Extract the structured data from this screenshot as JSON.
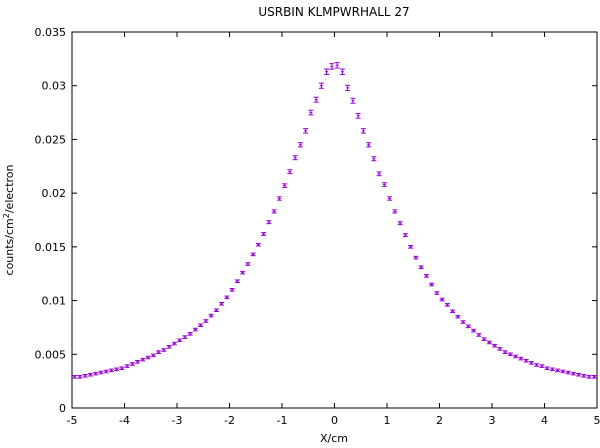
{
  "chart_data": {
    "type": "scatter",
    "title": "USRBIN KLMPWRHALL 27",
    "xlabel": "X/cm",
    "ylabel": {
      "prefix": "counts/cm",
      "superscript": "2",
      "suffix": "/electron"
    },
    "xlim": [
      -5,
      5
    ],
    "ylim": [
      0,
      0.035
    ],
    "x_ticks": [
      "-5",
      "-4",
      "-3",
      "-2",
      "-1",
      "0",
      "1",
      "2",
      "3",
      "4",
      "5"
    ],
    "y_ticks": [
      "0",
      "0.005",
      "0.01",
      "0.015",
      "0.02",
      "0.025",
      "0.03",
      "0.035"
    ],
    "grid": false,
    "series": [
      {
        "marker": "error-bar",
        "color": "#9400d3",
        "points": [
          [
            -4.95,
            0.0029
          ],
          [
            -4.85,
            0.0029
          ],
          [
            -4.75,
            0.003
          ],
          [
            -4.65,
            0.0031
          ],
          [
            -4.55,
            0.0032
          ],
          [
            -4.45,
            0.0033
          ],
          [
            -4.35,
            0.0034
          ],
          [
            -4.25,
            0.0035
          ],
          [
            -4.15,
            0.0036
          ],
          [
            -4.05,
            0.0037
          ],
          [
            -3.95,
            0.0039
          ],
          [
            -3.85,
            0.0041
          ],
          [
            -3.75,
            0.0043
          ],
          [
            -3.65,
            0.0045
          ],
          [
            -3.55,
            0.0047
          ],
          [
            -3.45,
            0.0049
          ],
          [
            -3.35,
            0.0052
          ],
          [
            -3.25,
            0.0054
          ],
          [
            -3.15,
            0.0057
          ],
          [
            -3.05,
            0.006
          ],
          [
            -2.95,
            0.0063
          ],
          [
            -2.85,
            0.0066
          ],
          [
            -2.75,
            0.0069
          ],
          [
            -2.65,
            0.0073
          ],
          [
            -2.55,
            0.0077
          ],
          [
            -2.45,
            0.0081
          ],
          [
            -2.35,
            0.0086
          ],
          [
            -2.25,
            0.0091
          ],
          [
            -2.15,
            0.0097
          ],
          [
            -2.05,
            0.0103
          ],
          [
            -1.95,
            0.011
          ],
          [
            -1.85,
            0.0118
          ],
          [
            -1.75,
            0.0126
          ],
          [
            -1.65,
            0.0134
          ],
          [
            -1.55,
            0.0143
          ],
          [
            -1.45,
            0.0152
          ],
          [
            -1.35,
            0.0162
          ],
          [
            -1.25,
            0.0173
          ],
          [
            -1.15,
            0.0183
          ],
          [
            -1.05,
            0.0195
          ],
          [
            -0.95,
            0.0207
          ],
          [
            -0.85,
            0.022
          ],
          [
            -0.75,
            0.0233
          ],
          [
            -0.65,
            0.0245
          ],
          [
            -0.55,
            0.0258
          ],
          [
            -0.45,
            0.0275
          ],
          [
            -0.35,
            0.0287
          ],
          [
            -0.25,
            0.03
          ],
          [
            -0.15,
            0.0313
          ],
          [
            -0.05,
            0.0318
          ],
          [
            0.05,
            0.0319
          ],
          [
            0.15,
            0.0313
          ],
          [
            0.25,
            0.0298
          ],
          [
            0.35,
            0.0286
          ],
          [
            0.45,
            0.0272
          ],
          [
            0.55,
            0.0258
          ],
          [
            0.65,
            0.0245
          ],
          [
            0.75,
            0.0232
          ],
          [
            0.85,
            0.0218
          ],
          [
            0.95,
            0.0208
          ],
          [
            1.05,
            0.0195
          ],
          [
            1.15,
            0.0183
          ],
          [
            1.25,
            0.0172
          ],
          [
            1.35,
            0.0161
          ],
          [
            1.45,
            0.015
          ],
          [
            1.55,
            0.014
          ],
          [
            1.65,
            0.0131
          ],
          [
            1.75,
            0.0123
          ],
          [
            1.85,
            0.0115
          ],
          [
            1.95,
            0.0107
          ],
          [
            2.05,
            0.0101
          ],
          [
            2.15,
            0.0096
          ],
          [
            2.25,
            0.009
          ],
          [
            2.35,
            0.0085
          ],
          [
            2.45,
            0.008
          ],
          [
            2.55,
            0.0076
          ],
          [
            2.65,
            0.0072
          ],
          [
            2.75,
            0.0068
          ],
          [
            2.85,
            0.0064
          ],
          [
            2.95,
            0.0061
          ],
          [
            3.05,
            0.0058
          ],
          [
            3.15,
            0.0055
          ],
          [
            3.25,
            0.0052
          ],
          [
            3.35,
            0.005
          ],
          [
            3.45,
            0.0048
          ],
          [
            3.55,
            0.0046
          ],
          [
            3.65,
            0.0044
          ],
          [
            3.75,
            0.0042
          ],
          [
            3.85,
            0.004
          ],
          [
            3.95,
            0.0039
          ],
          [
            4.05,
            0.0037
          ],
          [
            4.15,
            0.0036
          ],
          [
            4.25,
            0.0035
          ],
          [
            4.35,
            0.0034
          ],
          [
            4.45,
            0.0033
          ],
          [
            4.55,
            0.0032
          ],
          [
            4.65,
            0.0031
          ],
          [
            4.75,
            0.003
          ],
          [
            4.85,
            0.0029
          ],
          [
            4.95,
            0.0029
          ]
        ],
        "error_fraction": 0.008
      }
    ]
  }
}
